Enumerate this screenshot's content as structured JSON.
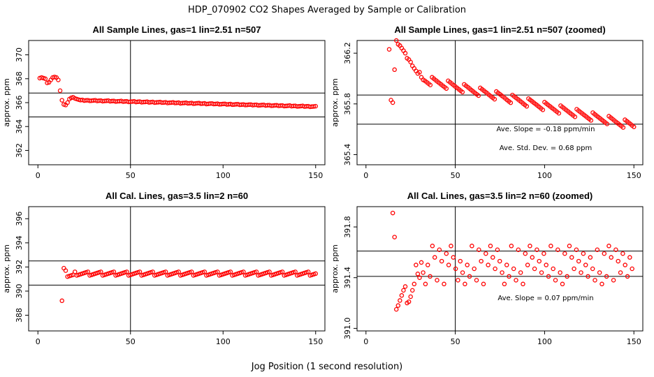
{
  "figure": {
    "title": "HDP_070902  CO2 Shapes Averaged by Sample or Calibration",
    "xlabel": "Jog Position (1 second resolution)"
  },
  "colors": {
    "points": "#ff0000",
    "lines": "#000000",
    "frame": "#000000"
  },
  "chart_data": [
    {
      "type": "scatter",
      "title": "All Sample Lines, gas=1 lin=2.51 n=507",
      "xlabel": "",
      "ylabel": "approx. ppm",
      "xlim": [
        -5,
        155
      ],
      "ylim": [
        360.8,
        371.2
      ],
      "xticks": [
        "0",
        "50",
        "100",
        "150"
      ],
      "yticks": [
        "362",
        "364",
        "366",
        "368",
        "370"
      ],
      "hlines": [
        366.8,
        364.8
      ],
      "vline": 50,
      "annotations": [],
      "series": [
        {
          "x": [],
          "y": []
        }
      ],
      "grid": false
    },
    {
      "type": "scatter",
      "title": "All Sample Lines, gas=1 lin=2.51 n=507 (zoomed)",
      "xlabel": "",
      "ylabel": "approx. ppm",
      "xlim": [
        -5,
        155
      ],
      "ylim": [
        365.32,
        366.3
      ],
      "xticks": [
        "0",
        "50",
        "100",
        "150"
      ],
      "yticks": [
        "365.4",
        "365.8",
        "366.2"
      ],
      "hlines": [
        365.87,
        365.64
      ],
      "vline": 50,
      "annotations": [
        "Ave. Slope =  -0.18  ppm/min",
        "Ave. Std. Dev. =  0.68  ppm"
      ],
      "series": [
        {
          "x": [],
          "y": []
        }
      ],
      "grid": false
    },
    {
      "type": "scatter",
      "title": "All Cal. Lines, gas=3.5 lin=2 n=60",
      "xlabel": "",
      "ylabel": "approx. ppm",
      "xlim": [
        -5,
        155
      ],
      "ylim": [
        386.7,
        397.0
      ],
      "xticks": [
        "0",
        "50",
        "100",
        "150"
      ],
      "yticks": [
        "388",
        "390",
        "392",
        "394",
        "396"
      ],
      "hlines": [
        392.5,
        390.5
      ],
      "vline": 50,
      "annotations": [],
      "series": [
        {
          "x": [],
          "y": []
        }
      ],
      "grid": false
    },
    {
      "type": "scatter",
      "title": "All Cal. Lines, gas=3.5 lin=2 n=60 (zoomed)",
      "xlabel": "",
      "ylabel": "approx. ppm",
      "xlim": [
        -5,
        155
      ],
      "ylim": [
        390.98,
        391.96
      ],
      "xticks": [
        "0",
        "50",
        "100",
        "150"
      ],
      "yticks": [
        "391.0",
        "391.4",
        "391.8"
      ],
      "hlines": [
        391.61,
        391.41
      ],
      "vline": 50,
      "annotations": [
        "Ave. Slope =  0.07  ppm/min"
      ],
      "series": [
        {
          "x": [],
          "y": []
        }
      ],
      "grid": false
    }
  ]
}
